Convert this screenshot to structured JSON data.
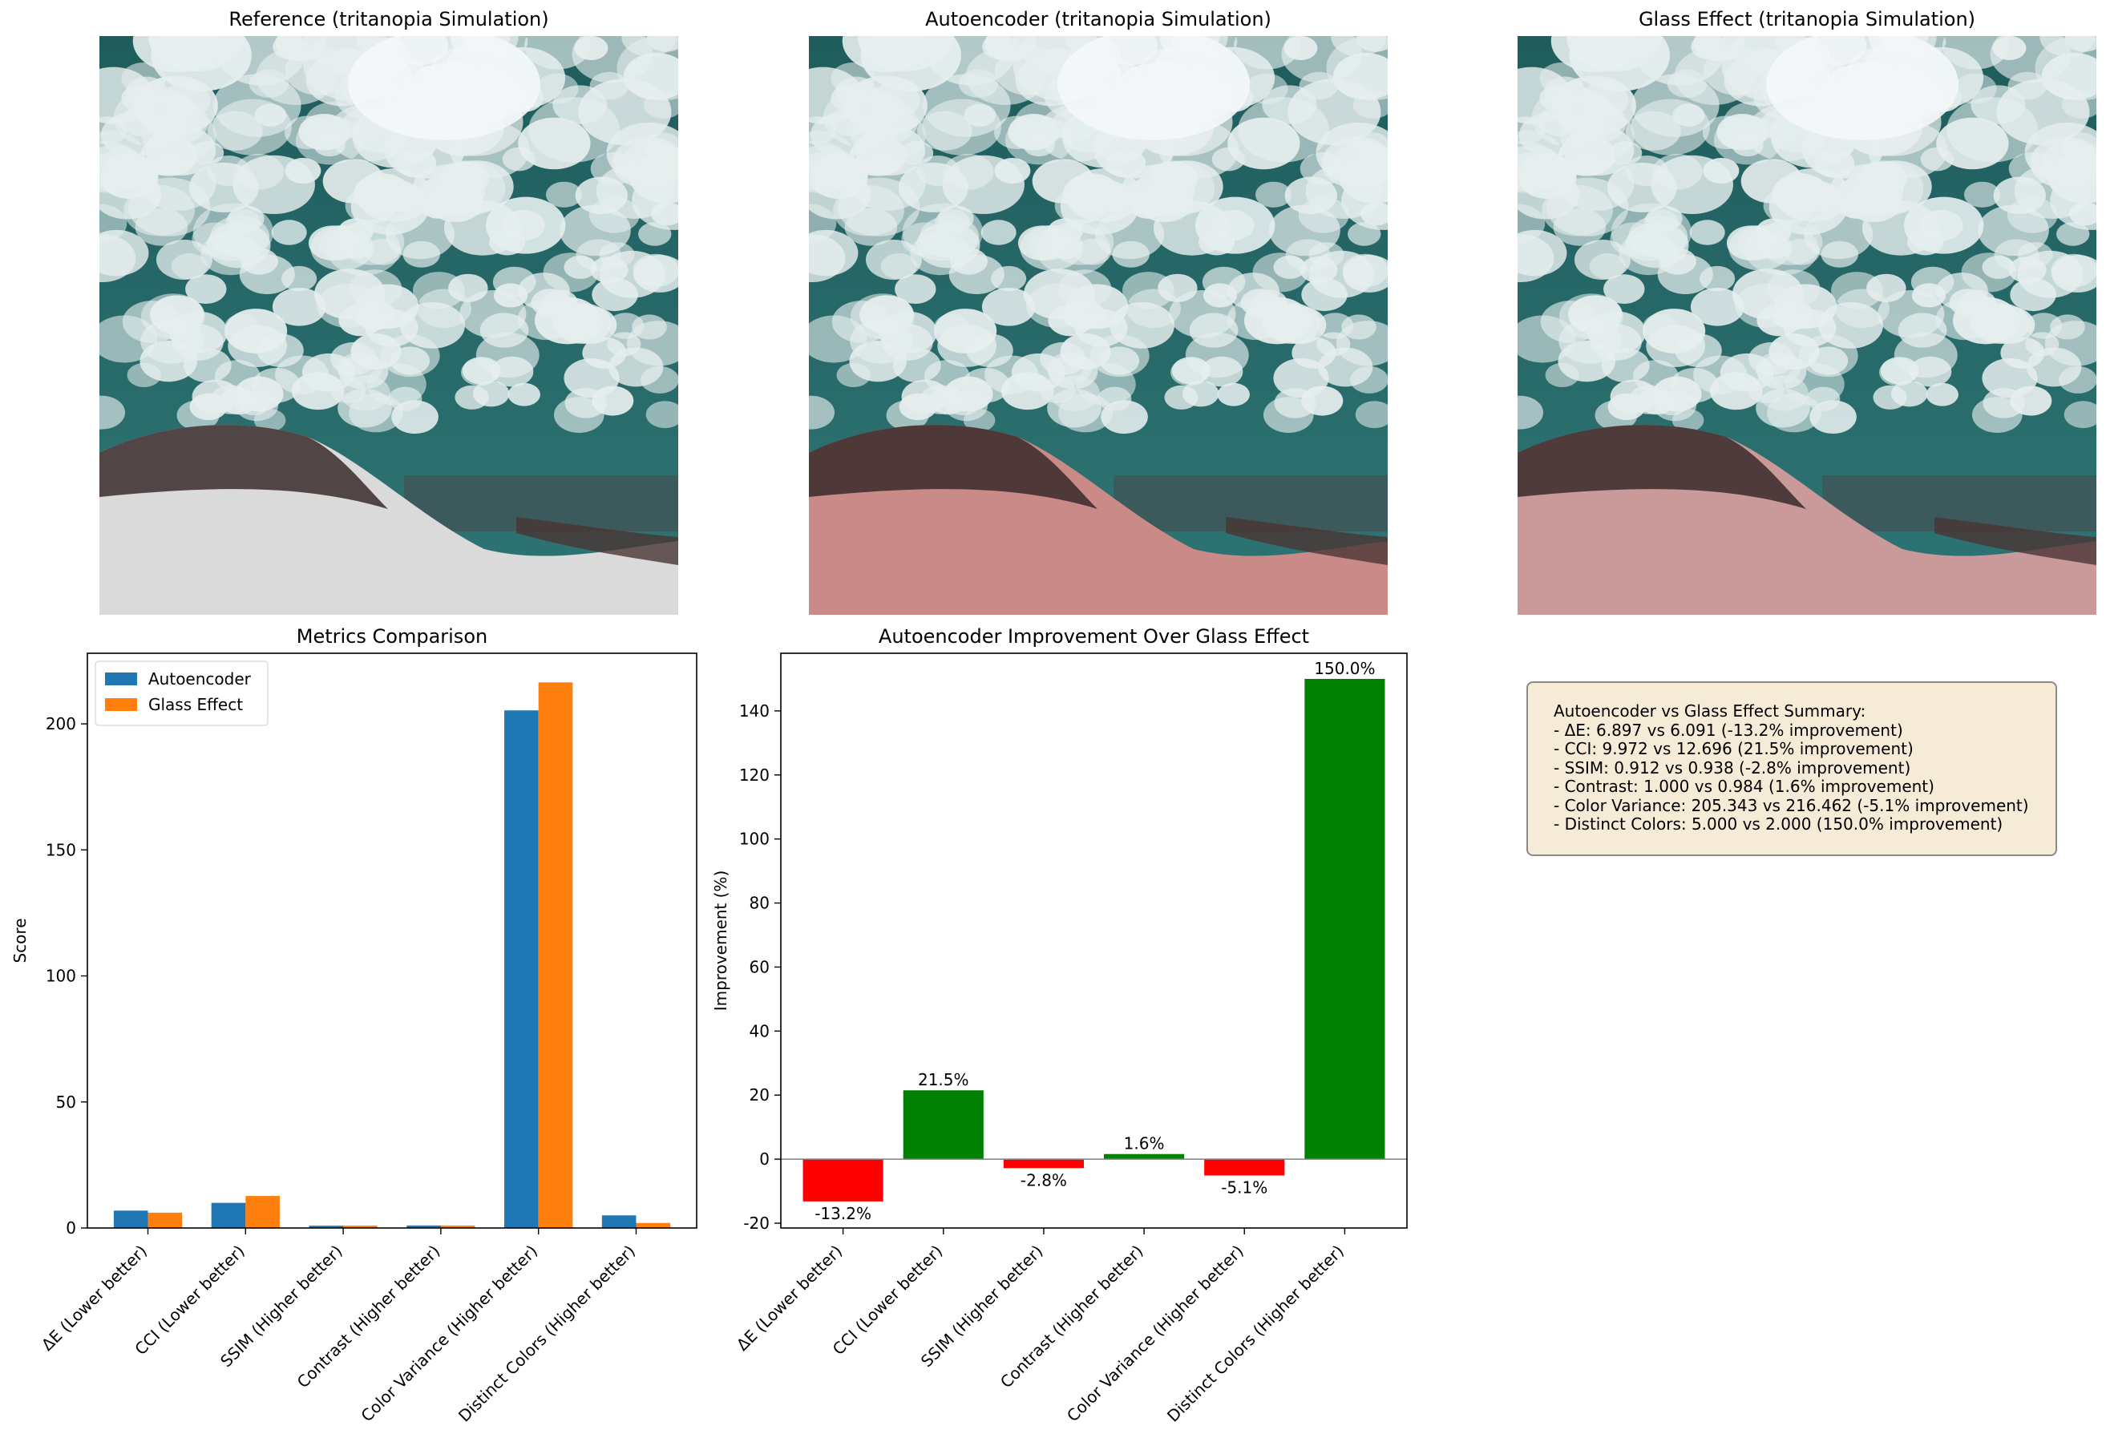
{
  "images": [
    {
      "title": "Reference (tritanopia Simulation)",
      "tint": "#d9dad9"
    },
    {
      "title": "Autoencoder (tritanopia Simulation)",
      "tint": "#c98a88"
    },
    {
      "title": "Glass Effect (tritanopia Simulation)",
      "tint": "#c99a99"
    }
  ],
  "colors": {
    "autoencoder": "#1f77b4",
    "glass_effect": "#ff7f0e",
    "positive": "#008000",
    "negative": "#ff0000",
    "sky": "#2f7575",
    "cloud": "#e6eeee"
  },
  "chart_data": [
    {
      "type": "bar",
      "title": "Metrics Comparison",
      "xlabel": "",
      "ylabel": "Score",
      "ylim": [
        0,
        228
      ],
      "yticks": [
        0,
        50,
        100,
        150,
        200
      ],
      "legend": "top-left",
      "categories": [
        "ΔE (Lower better)",
        "CCI (Lower better)",
        "SSIM (Higher better)",
        "Contrast (Higher better)",
        "Color Variance (Higher better)",
        "Distinct Colors (Higher better)"
      ],
      "series": [
        {
          "name": "Autoencoder",
          "values": [
            6.897,
            9.972,
            0.912,
            1.0,
            205.343,
            5.0
          ]
        },
        {
          "name": "Glass Effect",
          "values": [
            6.091,
            12.696,
            0.938,
            0.984,
            216.462,
            2.0
          ]
        }
      ]
    },
    {
      "type": "bar",
      "title": "Autoencoder Improvement Over Glass Effect",
      "xlabel": "",
      "ylabel": "Improvement (%)",
      "ylim": [
        -21.5,
        158
      ],
      "yticks": [
        -20,
        0,
        20,
        40,
        60,
        80,
        100,
        120,
        140
      ],
      "categories": [
        "ΔE (Lower better)",
        "CCI (Lower better)",
        "SSIM (Higher better)",
        "Contrast (Higher better)",
        "Color Variance (Higher better)",
        "Distinct Colors (Higher better)"
      ],
      "values": [
        -13.2,
        21.5,
        -2.8,
        1.6,
        -5.1,
        150.0
      ],
      "data_labels": [
        "-13.2%",
        "21.5%",
        "-2.8%",
        "1.6%",
        "-5.1%",
        "150.0%"
      ]
    }
  ],
  "summary": {
    "lines": [
      "Autoencoder vs Glass Effect Summary:",
      "- ΔE: 6.897 vs 6.091 (-13.2% improvement)",
      "- CCI: 9.972 vs 12.696 (21.5% improvement)",
      "- SSIM: 0.912 vs 0.938 (-2.8% improvement)",
      "- Contrast: 1.000 vs 0.984 (1.6% improvement)",
      "- Color Variance: 205.343 vs 216.462 (-5.1% improvement)",
      "- Distinct Colors: 5.000 vs 2.000 (150.0% improvement)"
    ]
  }
}
